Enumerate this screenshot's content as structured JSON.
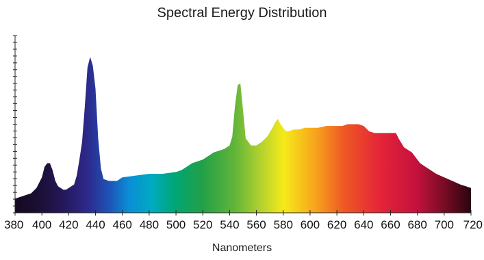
{
  "chart_data": {
    "type": "area",
    "title": "Spectral Energy Distribution",
    "xlabel": "Nanometers",
    "ylabel": "",
    "xlim": [
      380,
      720
    ],
    "ylim": [
      0,
      1
    ],
    "x_ticks": [
      "380",
      "400",
      "420",
      "440",
      "460",
      "480",
      "500",
      "520",
      "540",
      "560",
      "580",
      "600",
      "620",
      "640",
      "660",
      "680",
      "700",
      "720"
    ],
    "y_minor_ticks": 26,
    "grid": false,
    "fill": "visible-spectrum color gradient",
    "series": [
      {
        "x": [
          380,
          384,
          388,
          392,
          396,
          400,
          402,
          404,
          406,
          408,
          410,
          412,
          414,
          416,
          418,
          420,
          424,
          426,
          428,
          430,
          432,
          434,
          436,
          438,
          440,
          442,
          444,
          446,
          450,
          456,
          460,
          470,
          480,
          490,
          500,
          504,
          508,
          512,
          516,
          520,
          524,
          528,
          532,
          536,
          540,
          542,
          544,
          546,
          548,
          550,
          552,
          554,
          556,
          560,
          564,
          568,
          572,
          574,
          576,
          578,
          580,
          582,
          584,
          588,
          592,
          596,
          600,
          606,
          612,
          618,
          624,
          628,
          632,
          636,
          640,
          644,
          648,
          652,
          656,
          660,
          664,
          666,
          670,
          676,
          682,
          688,
          694,
          700,
          706,
          712,
          716,
          720
        ],
        "y": [
          0.08,
          0.09,
          0.1,
          0.11,
          0.14,
          0.2,
          0.26,
          0.28,
          0.28,
          0.24,
          0.18,
          0.15,
          0.14,
          0.13,
          0.13,
          0.14,
          0.16,
          0.21,
          0.3,
          0.4,
          0.6,
          0.82,
          0.88,
          0.83,
          0.7,
          0.42,
          0.25,
          0.19,
          0.18,
          0.18,
          0.2,
          0.21,
          0.22,
          0.22,
          0.23,
          0.24,
          0.26,
          0.28,
          0.29,
          0.3,
          0.32,
          0.34,
          0.35,
          0.36,
          0.38,
          0.43,
          0.6,
          0.72,
          0.73,
          0.58,
          0.42,
          0.4,
          0.38,
          0.38,
          0.4,
          0.43,
          0.48,
          0.51,
          0.53,
          0.5,
          0.48,
          0.46,
          0.46,
          0.47,
          0.47,
          0.48,
          0.48,
          0.48,
          0.49,
          0.49,
          0.49,
          0.5,
          0.5,
          0.5,
          0.49,
          0.46,
          0.45,
          0.45,
          0.45,
          0.45,
          0.45,
          0.42,
          0.37,
          0.34,
          0.28,
          0.25,
          0.22,
          0.2,
          0.18,
          0.16,
          0.15,
          0.14
        ]
      }
    ]
  }
}
